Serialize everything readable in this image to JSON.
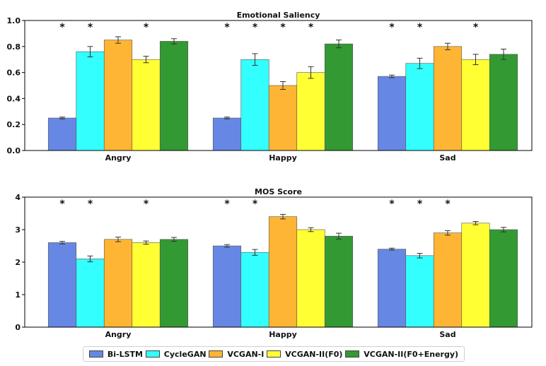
{
  "chart_data": [
    {
      "type": "bar",
      "title": "Emotional Saliency",
      "xlabel": "",
      "ylabel": "",
      "ylim": [
        0,
        1.0
      ],
      "yticks": [
        0.0,
        0.2,
        0.4,
        0.6,
        0.8,
        1.0
      ],
      "ytick_labels": [
        "0.0",
        "0.2",
        "0.4",
        "0.6",
        "0.8",
        "1.0"
      ],
      "categories": [
        "Angry",
        "Happy",
        "Sad"
      ],
      "series": [
        {
          "name": "Bi-LSTM",
          "values": [
            0.25,
            0.25,
            0.57
          ],
          "errors": [
            0.007,
            0.007,
            0.01
          ],
          "significant": [
            true,
            true,
            true
          ]
        },
        {
          "name": "CycleGAN",
          "values": [
            0.76,
            0.7,
            0.67
          ],
          "errors": [
            0.04,
            0.045,
            0.04
          ],
          "significant": [
            true,
            true,
            true
          ]
        },
        {
          "name": "VCGAN-I",
          "values": [
            0.85,
            0.5,
            0.8
          ],
          "errors": [
            0.025,
            0.03,
            0.025
          ],
          "significant": [
            false,
            true,
            false
          ]
        },
        {
          "name": "VCGAN-II(F0)",
          "values": [
            0.7,
            0.6,
            0.7
          ],
          "errors": [
            0.025,
            0.045,
            0.04
          ],
          "significant": [
            true,
            true,
            true
          ]
        },
        {
          "name": "VCGAN-II(F0+Energy)",
          "values": [
            0.84,
            0.82,
            0.74
          ],
          "errors": [
            0.02,
            0.03,
            0.04
          ],
          "significant": [
            false,
            false,
            false
          ]
        }
      ],
      "annotation_symbol": "*"
    },
    {
      "type": "bar",
      "title": "MOS Score",
      "xlabel": "",
      "ylabel": "",
      "ylim": [
        0,
        4
      ],
      "yticks": [
        0,
        1,
        2,
        3,
        4
      ],
      "ytick_labels": [
        "0",
        "1",
        "2",
        "3",
        "4"
      ],
      "categories": [
        "Angry",
        "Happy",
        "Sad"
      ],
      "series": [
        {
          "name": "Bi-LSTM",
          "values": [
            2.6,
            2.5,
            2.4
          ],
          "errors": [
            0.04,
            0.04,
            0.03
          ],
          "significant": [
            true,
            true,
            true
          ]
        },
        {
          "name": "CycleGAN",
          "values": [
            2.1,
            2.3,
            2.2
          ],
          "errors": [
            0.09,
            0.09,
            0.07
          ],
          "significant": [
            true,
            true,
            true
          ]
        },
        {
          "name": "VCGAN-I",
          "values": [
            2.7,
            3.4,
            2.9
          ],
          "errors": [
            0.07,
            0.07,
            0.07
          ],
          "significant": [
            false,
            false,
            true
          ]
        },
        {
          "name": "VCGAN-II(F0)",
          "values": [
            2.6,
            3.0,
            3.2
          ],
          "errors": [
            0.05,
            0.06,
            0.05
          ],
          "significant": [
            true,
            false,
            false
          ]
        },
        {
          "name": "VCGAN-II(F0+Energy)",
          "values": [
            2.7,
            2.8,
            3.0
          ],
          "errors": [
            0.06,
            0.09,
            0.07
          ],
          "significant": [
            false,
            false,
            false
          ]
        }
      ],
      "annotation_symbol": "*"
    }
  ],
  "legend": {
    "placement": "bottom-center",
    "items": [
      {
        "label": "Bi-LSTM",
        "color": "#6688e4"
      },
      {
        "label": "CycleGAN",
        "color": "#33ffff"
      },
      {
        "label": "VCGAN-I",
        "color": "#ffb534"
      },
      {
        "label": "VCGAN-II(F0)",
        "color": "#ffff33"
      },
      {
        "label": "VCGAN-II(F0+Energy)",
        "color": "#339933"
      }
    ]
  }
}
